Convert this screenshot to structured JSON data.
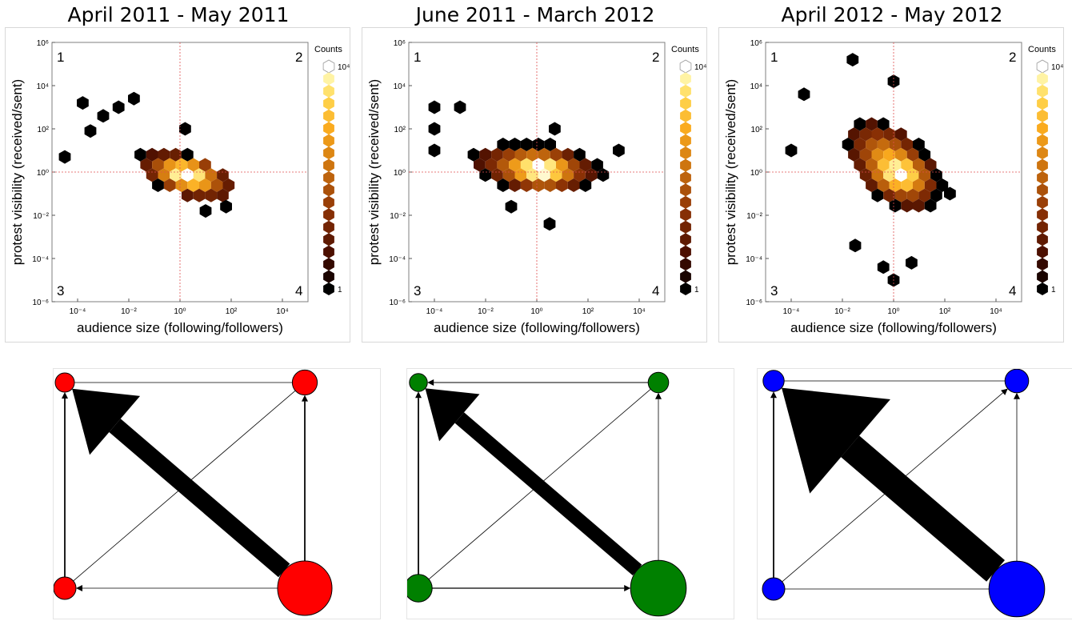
{
  "chart_data": [
    {
      "type": "heatmap",
      "title": "April 2011 - May 2011",
      "xlabel": "audience size (following/followers)",
      "ylabel": "protest visibility (received/sent)",
      "x_scale": "log",
      "y_scale": "log",
      "xlim": [
        1e-05,
        100000.0
      ],
      "ylim": [
        1e-06,
        1000000.0
      ],
      "x_ticks": [
        "10⁻⁴",
        "10⁻²",
        "10⁰",
        "10²",
        "10⁴"
      ],
      "y_ticks": [
        "10⁻⁶",
        "10⁻⁴",
        "10⁻²",
        "10⁰",
        "10²",
        "10⁴",
        "10⁶"
      ],
      "colorbar_title": "Counts",
      "colorbar_max": "10⁴",
      "colorbar_min": "1",
      "quadrant_labels": [
        "1",
        "2",
        "3",
        "4"
      ],
      "reference_lines": {
        "x": 1,
        "y": 1
      },
      "cluster": {
        "center_log10": [
          0.3,
          -0.2
        ],
        "spread_log10": [
          1.6,
          0.8
        ],
        "tilt": -0.3,
        "x_range_log10": [
          -4.5,
          2.0
        ],
        "y_range_log10": [
          -1.8,
          1.8
        ],
        "peak_log10": [
          0.3,
          0.0
        ],
        "outliers_log10": [
          [
            -3.8,
            3.2
          ],
          [
            -3.0,
            2.6
          ],
          [
            -2.4,
            3.0
          ],
          [
            -3.5,
            1.9
          ],
          [
            -4.5,
            0.7
          ],
          [
            0.2,
            2.0
          ],
          [
            -1.8,
            3.4
          ],
          [
            1.0,
            -1.8
          ],
          [
            1.8,
            -1.6
          ]
        ]
      }
    },
    {
      "type": "heatmap",
      "title": "June 2011 - March 2012",
      "xlabel": "audience size (following/followers)",
      "ylabel": "protest visibility (received/sent)",
      "x_scale": "log",
      "y_scale": "log",
      "xlim": [
        1e-05,
        100000.0
      ],
      "ylim": [
        1e-06,
        1000000.0
      ],
      "x_ticks": [
        "10⁻⁴",
        "10⁻²",
        "10⁰",
        "10²",
        "10⁴"
      ],
      "y_ticks": [
        "10⁻⁶",
        "10⁻⁴",
        "10⁻²",
        "10⁰",
        "10²",
        "10⁴",
        "10⁶"
      ],
      "colorbar_title": "Counts",
      "colorbar_max": "10⁴",
      "colorbar_min": "1",
      "quadrant_labels": [
        "1",
        "2",
        "3",
        "4"
      ],
      "reference_lines": {
        "x": 1,
        "y": 1
      },
      "cluster": {
        "center_log10": [
          0.0,
          0.2
        ],
        "spread_log10": [
          2.0,
          0.9
        ],
        "tilt": -0.1,
        "x_range_log10": [
          -4.2,
          3.3
        ],
        "y_range_log10": [
          -2.5,
          2.8
        ],
        "peak_log10": [
          0.2,
          0.0
        ],
        "outliers_log10": [
          [
            -4.0,
            3.0
          ],
          [
            -3.0,
            3.0
          ],
          [
            -4.0,
            2.0
          ],
          [
            -4.0,
            1.0
          ],
          [
            0.7,
            2.0
          ],
          [
            3.2,
            1.0
          ],
          [
            0.5,
            -2.4
          ],
          [
            -1.0,
            -1.6
          ]
        ]
      }
    },
    {
      "type": "heatmap",
      "title": "April 2012 - May 2012",
      "xlabel": "audience size (following/followers)",
      "ylabel": "protest visibility (received/sent)",
      "x_scale": "log",
      "y_scale": "log",
      "xlim": [
        1e-05,
        100000.0
      ],
      "ylim": [
        1e-06,
        1000000.0
      ],
      "x_ticks": [
        "10⁻⁴",
        "10⁻²",
        "10⁰",
        "10²",
        "10⁴"
      ],
      "y_ticks": [
        "10⁻⁶",
        "10⁻⁴",
        "10⁻²",
        "10⁰",
        "10²",
        "10⁴",
        "10⁶"
      ],
      "colorbar_title": "Counts",
      "colorbar_max": "10⁴",
      "colorbar_min": "1",
      "quadrant_labels": [
        "1",
        "2",
        "3",
        "4"
      ],
      "reference_lines": {
        "x": 1,
        "y": 1
      },
      "cluster": {
        "center_log10": [
          0.0,
          0.3
        ],
        "spread_log10": [
          1.5,
          1.5
        ],
        "tilt": -0.6,
        "x_range_log10": [
          -3.6,
          2.2
        ],
        "y_range_log10": [
          -4.6,
          3.2
        ],
        "peak_log10": [
          0.3,
          -0.2
        ],
        "outliers_log10": [
          [
            -1.6,
            5.2
          ],
          [
            0.0,
            4.2
          ],
          [
            -3.5,
            3.6
          ],
          [
            -4.0,
            1.0
          ],
          [
            2.2,
            -1.0
          ],
          [
            -1.5,
            -3.4
          ],
          [
            -0.4,
            -4.4
          ],
          [
            0.0,
            -5.0
          ],
          [
            0.7,
            -4.2
          ]
        ]
      }
    }
  ],
  "networks": [
    {
      "color": "#ff0000",
      "nodes": [
        {
          "id": "1",
          "size": 0.15
        },
        {
          "id": "2",
          "size": 0.24
        },
        {
          "id": "3",
          "size": 0.2
        },
        {
          "id": "4",
          "size": 0.7
        }
      ],
      "edges": [
        {
          "from": "4",
          "to": "1",
          "weight": 1.0,
          "arrow": true
        },
        {
          "from": "3",
          "to": "1",
          "weight": 0.08,
          "arrow": true
        },
        {
          "from": "4",
          "to": "2",
          "weight": 0.08,
          "arrow": true
        },
        {
          "from": "4",
          "to": "3",
          "weight": 0.03,
          "arrow": true
        },
        {
          "from": "3",
          "to": "2",
          "weight": 0.02,
          "arrow": false
        },
        {
          "from": "1",
          "to": "2",
          "weight": 0.02,
          "arrow": false
        }
      ]
    },
    {
      "color": "#008000",
      "nodes": [
        {
          "id": "1",
          "size": 0.13
        },
        {
          "id": "2",
          "size": 0.17
        },
        {
          "id": "3",
          "size": 0.28
        },
        {
          "id": "4",
          "size": 0.72
        }
      ],
      "edges": [
        {
          "from": "4",
          "to": "1",
          "weight": 0.8,
          "arrow": true
        },
        {
          "from": "3",
          "to": "1",
          "weight": 0.08,
          "arrow": true
        },
        {
          "from": "2",
          "to": "1",
          "weight": 0.05,
          "arrow": true
        },
        {
          "from": "3",
          "to": "4",
          "weight": 0.06,
          "arrow": true
        },
        {
          "from": "4",
          "to": "2",
          "weight": 0.03,
          "arrow": true
        },
        {
          "from": "3",
          "to": "2",
          "weight": 0.01,
          "arrow": false
        }
      ]
    },
    {
      "color": "#0000ff",
      "nodes": [
        {
          "id": "1",
          "size": 0.18
        },
        {
          "id": "2",
          "size": 0.22
        },
        {
          "id": "3",
          "size": 0.2
        },
        {
          "id": "4",
          "size": 0.72
        }
      ],
      "edges": [
        {
          "from": "4",
          "to": "1",
          "weight": 1.6,
          "arrow": true
        },
        {
          "from": "3",
          "to": "1",
          "weight": 0.08,
          "arrow": true
        },
        {
          "from": "3",
          "to": "2",
          "weight": 0.03,
          "arrow": true
        },
        {
          "from": "4",
          "to": "2",
          "weight": 0.02,
          "arrow": true
        },
        {
          "from": "1",
          "to": "2",
          "weight": 0.02,
          "arrow": false
        },
        {
          "from": "3",
          "to": "4",
          "weight": 0.015,
          "arrow": false
        }
      ]
    }
  ]
}
